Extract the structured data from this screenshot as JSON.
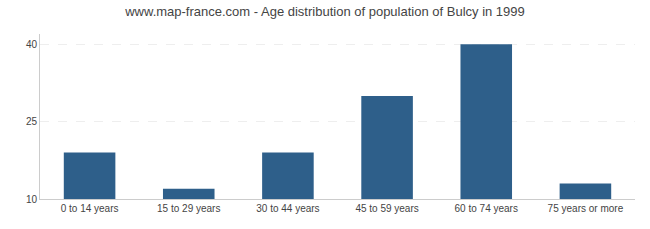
{
  "chart_data": {
    "type": "bar",
    "title": "www.map-france.com - Age distribution of population of Bulcy in 1999",
    "categories": [
      "0 to 14 years",
      "15 to 29 years",
      "30 to 44 years",
      "45 to 59 years",
      "60 to 74 years",
      "75 years or more"
    ],
    "values": [
      19,
      12,
      19,
      30,
      40,
      13
    ],
    "color": "#2e5f8a",
    "ylim": [
      10,
      42
    ],
    "yticks": [
      10,
      25,
      40
    ],
    "grid": true
  }
}
